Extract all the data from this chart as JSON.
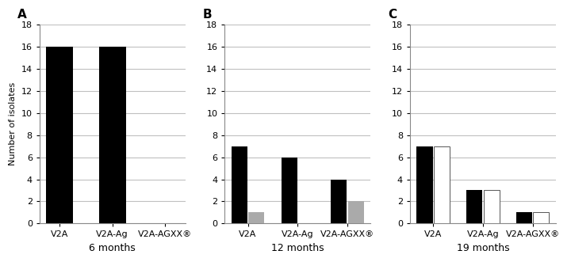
{
  "panels": [
    {
      "label": "A",
      "title": "6 months",
      "categories": [
        "V2A",
        "V2A-Ag",
        "V2A-AGXX®"
      ],
      "series": [
        {
          "values": [
            16,
            16,
            0
          ],
          "color": "#000000"
        },
        {
          "values": [
            0,
            0,
            0
          ],
          "color": "#aaaaaa"
        }
      ],
      "has_second": false
    },
    {
      "label": "B",
      "title": "12 months",
      "categories": [
        "V2A",
        "V2A-Ag",
        "V2A-AGXX®"
      ],
      "series": [
        {
          "values": [
            7,
            6,
            4
          ],
          "color": "#000000"
        },
        {
          "values": [
            1,
            0,
            2
          ],
          "color": "#aaaaaa"
        }
      ],
      "has_second": true
    },
    {
      "label": "C",
      "title": "19 months",
      "categories": [
        "V2A",
        "V2A-Ag",
        "V2A-AGXX®"
      ],
      "series": [
        {
          "values": [
            7,
            3,
            1
          ],
          "color": "#000000"
        },
        {
          "values": [
            7,
            3,
            1
          ],
          "color": "#ffffff"
        }
      ],
      "has_second": true
    }
  ],
  "ylabel": "Number of isolates",
  "ylim": [
    0,
    18
  ],
  "yticks": [
    0,
    2,
    4,
    6,
    8,
    10,
    12,
    14,
    16,
    18
  ],
  "bar_width": 0.32,
  "background_color": "#ffffff",
  "grid_color": "#c0c0c0",
  "label_fontsize": 8,
  "axis_label_fontsize": 8,
  "title_fontsize": 9,
  "panel_label_fontsize": 11
}
